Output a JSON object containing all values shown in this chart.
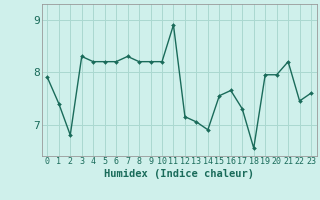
{
  "x": [
    0,
    1,
    2,
    3,
    4,
    5,
    6,
    7,
    8,
    9,
    10,
    11,
    12,
    13,
    14,
    15,
    16,
    17,
    18,
    19,
    20,
    21,
    22,
    23
  ],
  "y": [
    7.9,
    7.4,
    6.8,
    8.3,
    8.2,
    8.2,
    8.2,
    8.3,
    8.2,
    8.2,
    8.2,
    8.9,
    7.15,
    7.05,
    6.9,
    7.55,
    7.65,
    7.3,
    6.55,
    7.95,
    7.95,
    8.2,
    7.45,
    7.6
  ],
  "line_color": "#1a6b5a",
  "marker": "D",
  "marker_size": 2.0,
  "bg_color": "#cff0eb",
  "grid_color": "#aad8d0",
  "xlabel": "Humidex (Indice chaleur)",
  "ylim": [
    6.4,
    9.3
  ],
  "xlim": [
    -0.5,
    23.5
  ],
  "yticks": [
    7,
    8,
    9
  ],
  "xticks": [
    0,
    1,
    2,
    3,
    4,
    5,
    6,
    7,
    8,
    9,
    10,
    11,
    12,
    13,
    14,
    15,
    16,
    17,
    18,
    19,
    20,
    21,
    22,
    23
  ],
  "xlabel_fontsize": 7.5,
  "ytick_fontsize": 8,
  "xtick_fontsize": 6,
  "line_width": 1.0
}
